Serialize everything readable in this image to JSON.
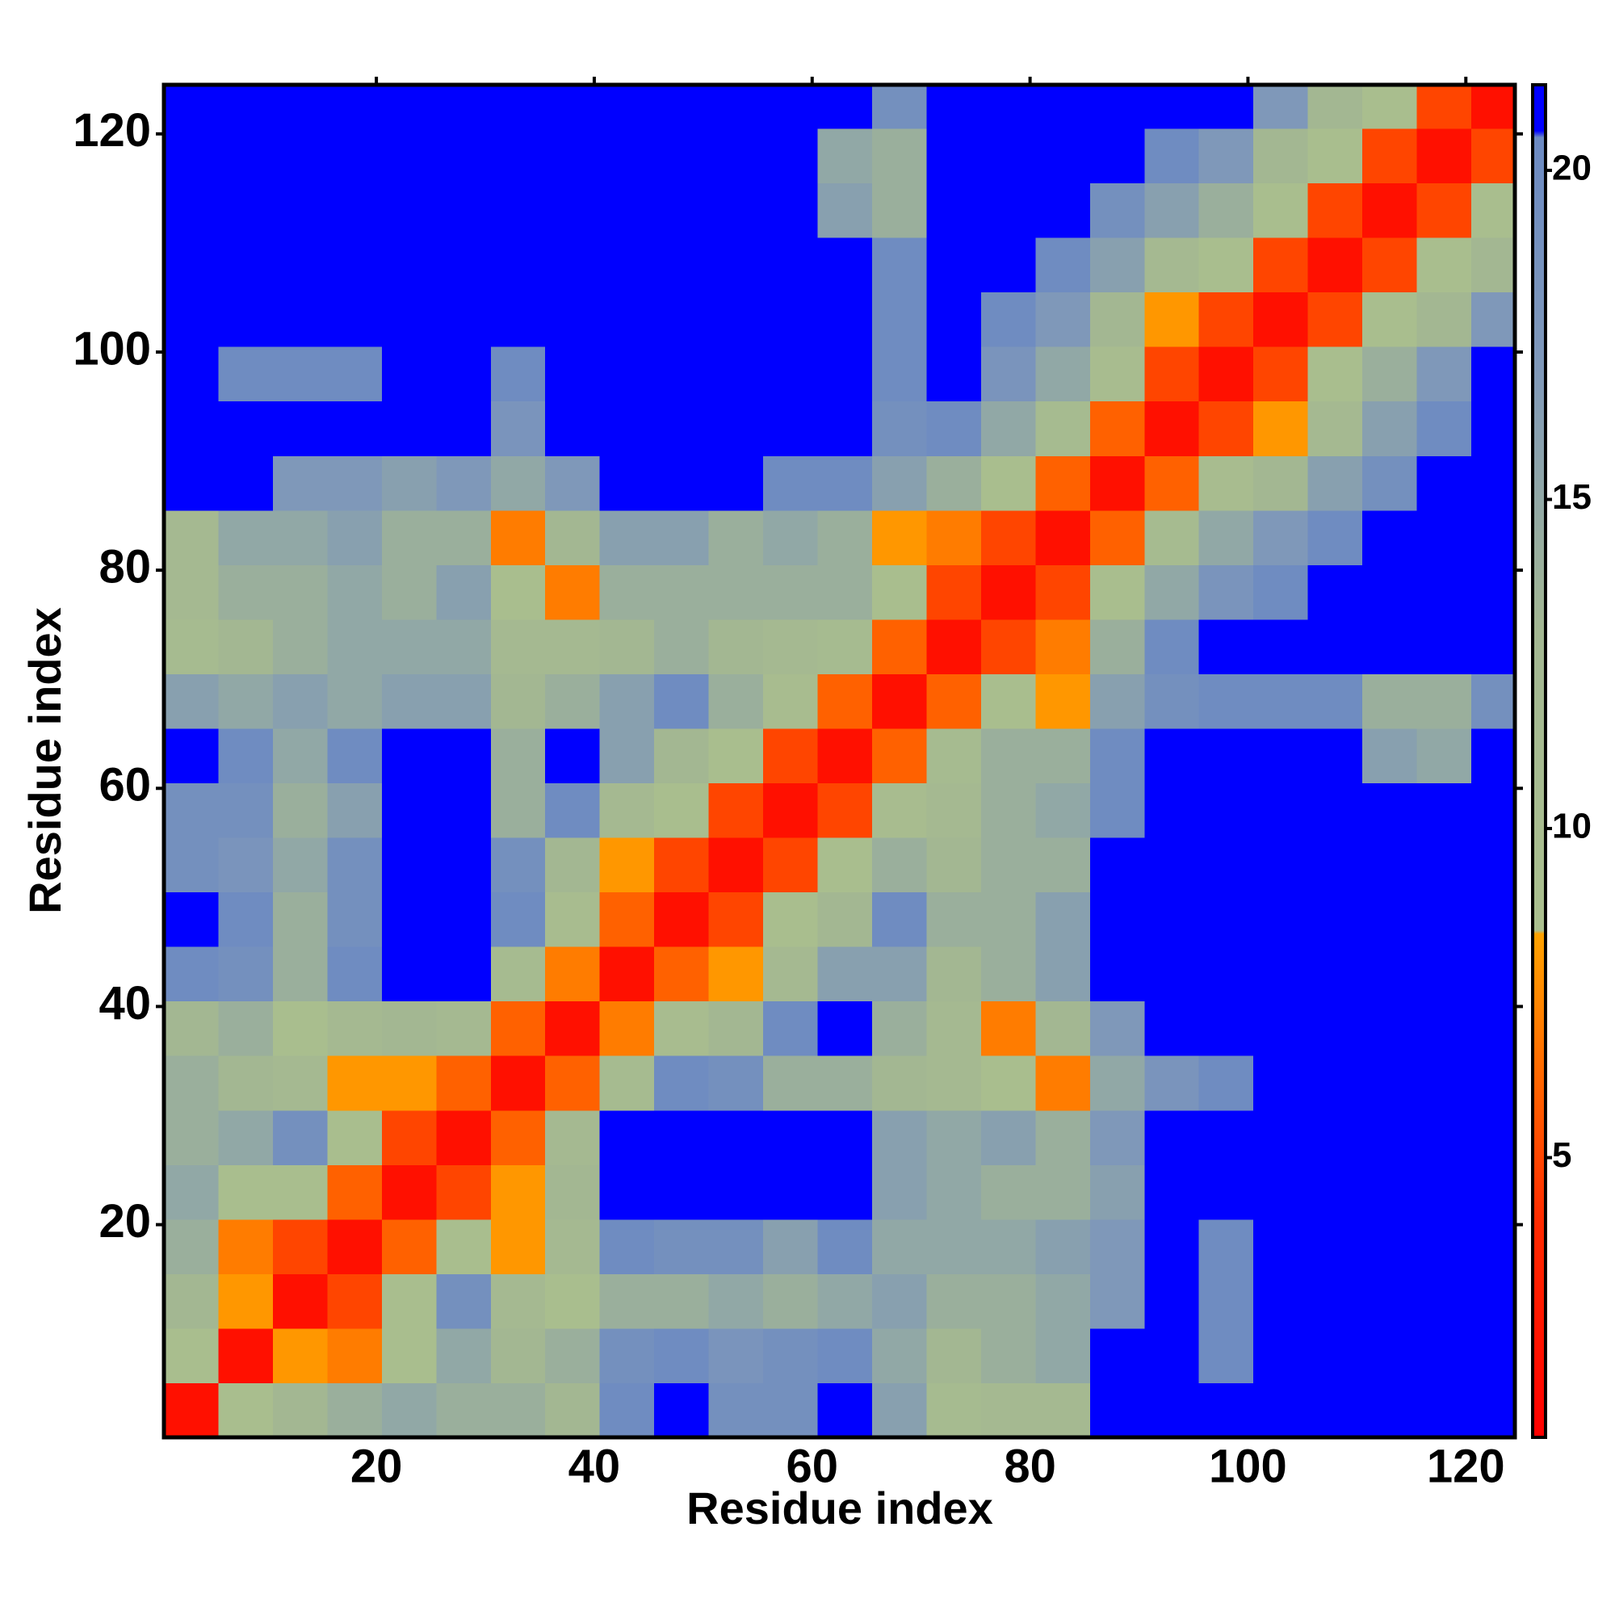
{
  "chart_data": {
    "type": "heatmap",
    "xlabel": "Residue index",
    "ylabel": "Residue index",
    "xbins": [
      0.5,
      5.5,
      10.5,
      15.5,
      20.5,
      25.5,
      30.5,
      35.5,
      40.5,
      45.5,
      50.5,
      55.5,
      60.5,
      65.5,
      70.5,
      75.5,
      80.5,
      85.5,
      90.5,
      95.5,
      100.5,
      105.5,
      110.5,
      115.5,
      120.5,
      124.5
    ],
    "ybins": [
      0.5,
      5.5,
      10.5,
      15.5,
      20.5,
      25.5,
      30.5,
      35.5,
      40.5,
      45.5,
      50.5,
      55.5,
      60.5,
      65.5,
      70.5,
      75.5,
      80.5,
      85.5,
      90.5,
      95.5,
      100.5,
      105.5,
      110.5,
      115.5,
      120.5,
      124.5
    ],
    "z": [
      [
        2,
        9,
        13,
        14,
        15,
        14,
        14,
        13,
        20,
        21,
        19,
        19,
        21,
        16,
        11,
        12,
        12,
        21,
        21,
        21,
        21,
        21,
        21,
        21,
        21
      ],
      [
        9,
        2,
        8,
        7,
        9,
        15,
        13,
        14,
        19,
        20,
        18,
        19,
        20,
        15,
        13,
        14,
        15,
        21,
        21,
        20,
        21,
        21,
        21,
        21,
        21
      ],
      [
        13,
        8,
        2,
        5,
        9,
        19,
        12,
        9,
        14,
        14,
        15,
        14,
        15,
        16,
        14,
        14,
        15,
        17,
        21,
        20,
        21,
        21,
        21,
        21,
        21
      ],
      [
        14,
        7,
        5,
        2,
        6,
        9,
        8,
        12,
        20,
        19,
        19,
        16,
        20,
        15,
        15,
        15,
        16,
        17,
        21,
        20,
        21,
        21,
        21,
        21,
        21
      ],
      [
        15,
        9,
        9,
        6,
        2,
        5,
        8,
        13,
        21,
        21,
        21,
        21,
        21,
        16,
        15,
        14,
        14,
        16,
        21,
        21,
        21,
        21,
        21,
        21,
        21
      ],
      [
        14,
        15,
        19,
        9,
        5,
        2,
        6,
        12,
        21,
        21,
        21,
        21,
        21,
        16,
        15,
        16,
        14,
        17,
        21,
        21,
        21,
        21,
        21,
        21,
        21
      ],
      [
        14,
        13,
        12,
        8,
        8,
        6,
        2,
        6,
        11,
        20,
        19,
        14,
        14,
        13,
        12,
        9,
        7,
        15,
        18,
        20,
        21,
        21,
        21,
        21,
        21
      ],
      [
        13,
        14,
        9,
        12,
        13,
        12,
        6,
        2,
        7,
        10,
        13,
        20,
        21,
        14,
        12,
        7,
        13,
        17,
        21,
        21,
        21,
        21,
        21,
        21,
        21
      ],
      [
        20,
        19,
        14,
        20,
        21,
        21,
        11,
        7,
        2,
        6,
        8,
        12,
        16,
        16,
        13,
        14,
        16,
        21,
        21,
        21,
        21,
        21,
        21,
        21,
        21
      ],
      [
        21,
        20,
        14,
        19,
        21,
        21,
        20,
        10,
        6,
        2,
        5,
        9,
        13,
        20,
        14,
        14,
        16,
        21,
        21,
        21,
        21,
        21,
        21,
        21,
        21
      ],
      [
        19,
        18,
        15,
        19,
        21,
        21,
        19,
        13,
        8,
        5,
        2,
        5,
        9,
        14,
        13,
        14,
        14,
        21,
        21,
        21,
        21,
        21,
        21,
        21,
        21
      ],
      [
        19,
        19,
        14,
        16,
        21,
        21,
        14,
        20,
        12,
        9,
        5,
        2,
        5,
        10,
        12,
        14,
        15,
        20,
        21,
        21,
        21,
        21,
        21,
        21,
        21
      ],
      [
        21,
        20,
        15,
        20,
        21,
        21,
        14,
        21,
        16,
        13,
        9,
        5,
        2,
        6,
        11,
        14,
        14,
        20,
        21,
        21,
        21,
        21,
        16,
        15,
        21
      ],
      [
        16,
        15,
        16,
        15,
        16,
        16,
        13,
        14,
        16,
        20,
        14,
        10,
        6,
        2,
        6,
        9,
        8,
        16,
        19,
        20,
        20,
        20,
        14,
        14,
        19
      ],
      [
        11,
        13,
        14,
        15,
        15,
        15,
        12,
        12,
        13,
        14,
        13,
        12,
        11,
        6,
        2,
        5,
        7,
        14,
        20,
        21,
        21,
        21,
        21,
        21,
        21
      ],
      [
        12,
        14,
        14,
        15,
        14,
        16,
        9,
        7,
        14,
        14,
        14,
        14,
        14,
        9,
        5,
        2,
        5,
        9,
        15,
        18,
        20,
        21,
        21,
        21,
        21
      ],
      [
        12,
        15,
        15,
        16,
        14,
        14,
        7,
        13,
        16,
        16,
        14,
        15,
        14,
        8,
        7,
        5,
        2,
        6,
        11,
        15,
        17,
        20,
        21,
        21,
        21
      ],
      [
        21,
        21,
        17,
        17,
        16,
        17,
        15,
        17,
        21,
        21,
        21,
        20,
        20,
        16,
        14,
        9,
        6,
        2,
        6,
        10,
        13,
        16,
        19,
        21,
        21
      ],
      [
        21,
        21,
        21,
        21,
        21,
        21,
        18,
        21,
        21,
        21,
        21,
        21,
        21,
        19,
        20,
        15,
        11,
        6,
        2,
        5,
        8,
        12,
        16,
        20,
        21
      ],
      [
        21,
        20,
        20,
        20,
        21,
        21,
        20,
        21,
        21,
        21,
        21,
        21,
        21,
        20,
        21,
        18,
        15,
        10,
        5,
        2,
        5,
        9,
        14,
        17,
        21
      ],
      [
        21,
        21,
        21,
        21,
        21,
        21,
        21,
        21,
        21,
        21,
        21,
        21,
        21,
        20,
        21,
        20,
        17,
        13,
        8,
        5,
        2,
        5,
        9,
        13,
        17
      ],
      [
        21,
        21,
        21,
        21,
        21,
        21,
        21,
        21,
        21,
        21,
        21,
        21,
        21,
        20,
        21,
        21,
        20,
        16,
        12,
        9,
        5,
        2,
        5,
        9,
        13
      ],
      [
        21,
        21,
        21,
        21,
        21,
        21,
        21,
        21,
        21,
        21,
        21,
        21,
        16,
        14,
        21,
        21,
        21,
        19,
        16,
        14,
        9,
        5,
        2,
        5,
        9
      ],
      [
        21,
        21,
        21,
        21,
        21,
        21,
        21,
        21,
        21,
        21,
        21,
        21,
        15,
        14,
        21,
        21,
        21,
        21,
        20,
        17,
        13,
        9,
        5,
        2,
        5
      ],
      [
        21,
        21,
        21,
        21,
        21,
        21,
        21,
        21,
        21,
        21,
        21,
        21,
        21,
        19,
        21,
        21,
        21,
        21,
        21,
        21,
        17,
        13,
        9,
        5,
        2
      ]
    ],
    "xlim": [
      0.5,
      124.5
    ],
    "ylim": [
      0.5,
      124.5
    ],
    "xticks": [
      20,
      40,
      60,
      80,
      100,
      120
    ],
    "yticks": [
      20,
      40,
      60,
      80,
      100,
      120
    ],
    "clim": [
      0.75,
      21.3
    ],
    "cticks": [
      5,
      10,
      15,
      20
    ],
    "colorscale": [
      [
        0.75,
        "#ff0000"
      ],
      [
        4,
        "#ff2a00"
      ],
      [
        8.4,
        "#ffa200"
      ],
      [
        8.45,
        "#aabf8e"
      ],
      [
        13,
        "#a3b792"
      ],
      [
        17,
        "#7f98b9"
      ],
      [
        20.5,
        "#6c8ac2"
      ],
      [
        20.6,
        "#0000ff"
      ],
      [
        21.3,
        "#0000ff"
      ]
    ]
  }
}
